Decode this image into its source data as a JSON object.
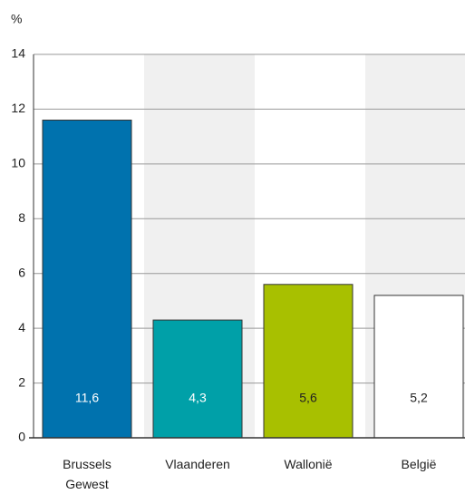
{
  "chart_data": {
    "type": "bar",
    "y_label": "%",
    "categories": [
      "Brussels Gewest",
      "Vlaanderen",
      "Wallonië",
      "België"
    ],
    "values": [
      11.6,
      4.3,
      5.6,
      5.2
    ],
    "value_labels": [
      "11,6",
      "4,3",
      "5,6",
      "5,2"
    ],
    "colors": [
      "#0072ae",
      "#00a0a8",
      "#a8c000",
      "#ffffff"
    ],
    "ylim": [
      0,
      14
    ],
    "yticks": [
      0,
      2,
      4,
      6,
      8,
      10,
      12,
      14
    ],
    "grid": true
  }
}
